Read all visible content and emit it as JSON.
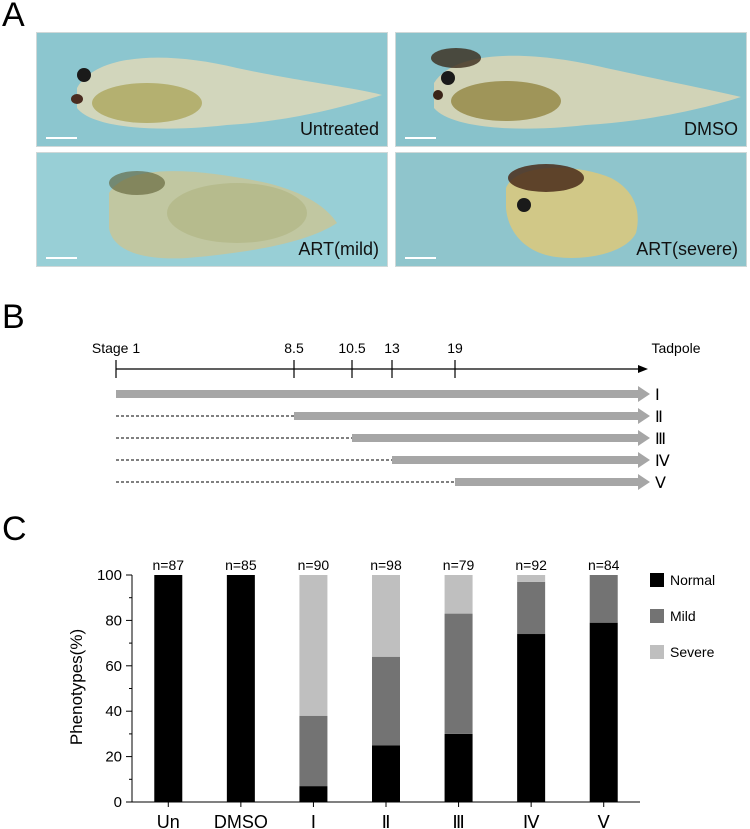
{
  "panels": {
    "a": "A",
    "b": "B",
    "c": "C"
  },
  "photos": [
    {
      "label": "Untreated",
      "bg": "#8cc6cf",
      "phenotype": "normal"
    },
    {
      "label": "DMSO",
      "bg": "#88c2cb",
      "phenotype": "normal"
    },
    {
      "label": "ART(mild)",
      "bg": "#98cfd6",
      "phenotype": "mild"
    },
    {
      "label": "ART(severe)",
      "bg": "#8fc5cc",
      "phenotype": "severe"
    }
  ],
  "timeline": {
    "start_label": "Stage 1",
    "end_label": "Tadpole",
    "ticks": [
      "8.5",
      "10.5",
      "13",
      "19"
    ],
    "treatments": [
      {
        "roman": "Ⅰ",
        "start_stage": "1"
      },
      {
        "roman": "Ⅱ",
        "start_stage": "8.5"
      },
      {
        "roman": "Ⅲ",
        "start_stage": "10.5"
      },
      {
        "roman": "Ⅳ",
        "start_stage": "13"
      },
      {
        "roman": "Ⅴ",
        "start_stage": "19"
      }
    ],
    "arrow_color": "#a6a6a6"
  },
  "chart_data": {
    "type": "bar",
    "stacked": true,
    "categories": [
      "Un",
      "DMSO",
      "Ⅰ",
      "Ⅱ",
      "Ⅲ",
      "Ⅳ",
      "Ⅴ"
    ],
    "n_labels": [
      "n=87",
      "n=85",
      "n=90",
      "n=98",
      "n=79",
      "n=92",
      "n=84"
    ],
    "ylabel": "Phenotypes(%)",
    "ylim": [
      0,
      100
    ],
    "yticks": [
      0,
      20,
      40,
      60,
      80,
      100
    ],
    "legend_position": "right",
    "series": [
      {
        "name": "Normal",
        "color": "#000000",
        "values": [
          100,
          100,
          7,
          25,
          30,
          74,
          79
        ]
      },
      {
        "name": "Mild",
        "color": "#737373",
        "values": [
          0,
          0,
          31,
          39,
          53,
          23,
          21
        ]
      },
      {
        "name": "Severe",
        "color": "#bfbfbf",
        "values": [
          0,
          0,
          62,
          36,
          17,
          3,
          0
        ]
      }
    ]
  }
}
